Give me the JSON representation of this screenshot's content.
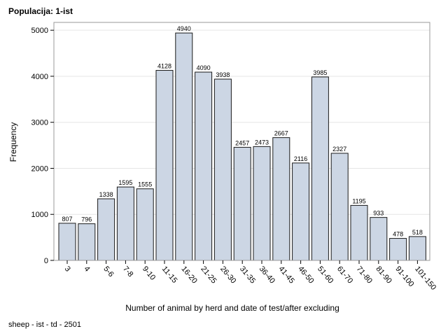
{
  "page": {
    "title": "Populacija: 1-ist",
    "footnote": "sheep - ist - td - 2501"
  },
  "colors": {
    "bar_fill": "#ccd6e4",
    "bar_stroke": "#1a1a1a",
    "grid": "#e6e6e6",
    "frame": "#9a9a9a"
  },
  "chart_data": {
    "type": "bar",
    "title": "",
    "xlabel": "Number of animal by herd and date of test/after excluding",
    "ylabel": "Frequency",
    "ylim": [
      0,
      5000
    ],
    "yticks": [
      0,
      1000,
      2000,
      3000,
      4000,
      5000
    ],
    "grid": true,
    "categories": [
      "3",
      "4",
      "5-6",
      "7-8",
      "9-10",
      "11-15",
      "16-20",
      "21-25",
      "26-30",
      "31-35",
      "36-40",
      "41-45",
      "46-50",
      "51-60",
      "61-70",
      "71-80",
      "81-90",
      "91-100",
      "101-150"
    ],
    "values": [
      807,
      796,
      1338,
      1595,
      1555,
      4128,
      4940,
      4090,
      3938,
      2457,
      2473,
      2667,
      2116,
      3985,
      2327,
      1195,
      933,
      478,
      518
    ]
  }
}
